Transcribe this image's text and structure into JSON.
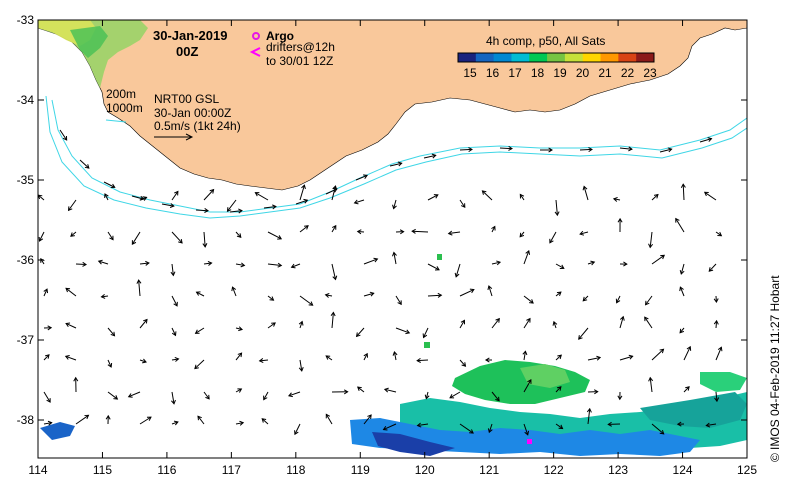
{
  "title": {
    "date": "30-Jan-2019",
    "time": "00Z"
  },
  "legend": {
    "argo_label": "Argo",
    "drifters_line1": "drifters@12h",
    "drifters_line2": "to 30/01 12Z",
    "isobath_200": "200m",
    "isobath_1000": "1000m",
    "product_line1": "NRT00 GSL",
    "product_line2": "30-Jan 00:00Z",
    "scale_label": "0.5m/s (1kt 24h)"
  },
  "colorbar": {
    "title": "4h comp, p50, All Sats",
    "ticks": [
      "15",
      "16",
      "17",
      "18",
      "19",
      "20",
      "21",
      "22",
      "23"
    ],
    "colors": [
      "#1a237e",
      "#1565c0",
      "#0288d1",
      "#00bcd4",
      "#00c853",
      "#76c442",
      "#c6e03a",
      "#ffd600",
      "#ff9800",
      "#d84315",
      "#8b1a1a"
    ]
  },
  "axes": {
    "x_ticks": [
      "114",
      "115",
      "116",
      "117",
      "118",
      "119",
      "120",
      "121",
      "122",
      "123",
      "124",
      "125"
    ],
    "y_ticks": [
      "-33",
      "-34",
      "-35",
      "-36",
      "-37",
      "-38"
    ]
  },
  "credit": "IMOS 04-Feb-2019 11:27 Hobart",
  "colors": {
    "land": "#f9c89b",
    "isobath": "#3fd6e6",
    "argo": "#e619e6",
    "drifter": "#ff00ff"
  }
}
